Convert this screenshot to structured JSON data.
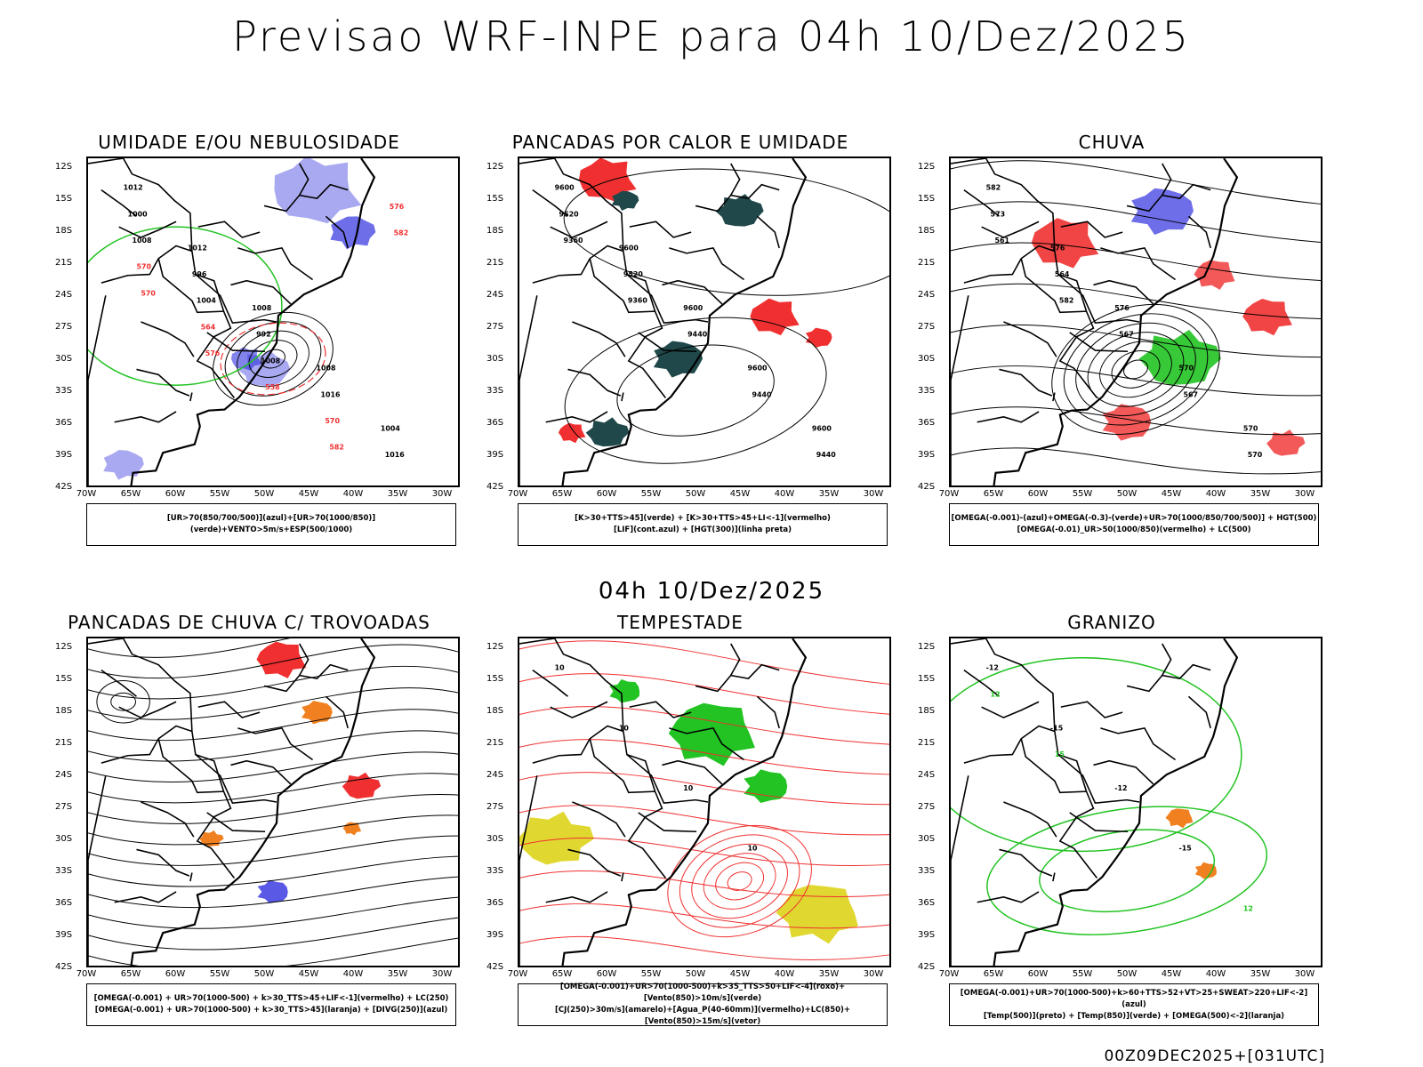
{
  "title": "Previsao WRF-INPE  para 04h 10/Dez/2025",
  "mid_title": "04h 10/Dez/2025",
  "footer": "00Z09DEC2025+[031UTC]",
  "lat_ticks": [
    "12S",
    "15S",
    "18S",
    "21S",
    "24S",
    "27S",
    "30S",
    "33S",
    "36S",
    "39S",
    "42S"
  ],
  "lon_ticks": [
    "70W",
    "65W",
    "60W",
    "55W",
    "50W",
    "45W",
    "40W",
    "35W",
    "30W"
  ],
  "colors": {
    "blue": "#3030e0",
    "green": "#22c322",
    "red": "#f03030",
    "orange": "#f08020",
    "yellow": "#e0d830",
    "teal": "#20484a",
    "lavender": "#a0a0f0",
    "purple": "#8020c0"
  },
  "panels": [
    {
      "title": "UMIDADE E/OU NEBULOSIDADE",
      "legend": [
        "[UR>70(850/700/500)](azul)+[UR>70(1000/850)](verde)+VENTO>5m/s+ESP(500/1000)"
      ],
      "labels": [
        "1012",
        "1012",
        "1008",
        "1008",
        "1004",
        "1000",
        "996",
        "992",
        "1016",
        "1016",
        "1008",
        "1004",
        "1008",
        "570",
        "576",
        "570",
        "564",
        "558",
        "582",
        "582",
        "570",
        "576"
      ]
    },
    {
      "title": "PANCADAS POR CALOR E UMIDADE",
      "legend": [
        "[K>30+TTS>45](verde) + [K>30+TTS>45+LI<-1](vermelho)",
        "[LIF](cont.azul) + [HGT(300)](linha preta)"
      ],
      "labels": [
        "9600",
        "9600",
        "9600",
        "9600",
        "9600",
        "9520",
        "9520",
        "9440",
        "9440",
        "9440",
        "9360",
        "9360"
      ]
    },
    {
      "title": "CHUVA",
      "legend": [
        "[OMEGA(-0.001)-(azul)+OMEGA(-0.3)-(verde)+UR>70(1000/850/700/500)] + HGT(500)",
        "[OMEGA(-0.01)_UR>50(1000/850)(vermelho) + LC(500)"
      ],
      "labels": [
        "582",
        "576",
        "576",
        "570",
        "570",
        "573",
        "564",
        "567",
        "567",
        "570",
        "561",
        "582"
      ]
    },
    {
      "title": "PANCADAS DE CHUVA C/ TROVOADAS",
      "legend": [
        "[OMEGA(-0.001) + UR>70(1000-500) + k>30_TTS>45+LIF<-1](vermelho) + LC(250)",
        "[OMEGA(-0.001) + UR>70(1000-500) + k>30_TTS>45](laranja) + [DIVG(250)](azul)"
      ],
      "labels": []
    },
    {
      "title": "TEMPESTADE",
      "legend": [
        "[OMEGA(-0.001)+UR>70(1000-500)+k>35_TTS>50+LIF<-4](roxo)+[Vento(850)>10m/s](verde)",
        "[CJ(250)>30m/s](amarelo)+[Agua_P(40-60mm)](vermelho)+LC(850)+[Vento(850)>15m/s](vetor)"
      ],
      "labels": [
        "10",
        "10",
        "10",
        "10"
      ]
    },
    {
      "title": "GRANIZO",
      "legend": [
        "[OMEGA(-0.001)+UR>70(1000-500)+k>60+TTS>52+VT>25+SWEAT>220+LIF<-2](azul)",
        "[Temp(500)](preto) + [Temp(850)](verde) + [OMEGA(500)<-2](laranja)"
      ],
      "labels": [
        "-12",
        "-15",
        "-12",
        "-15",
        "12",
        "12",
        "15"
      ]
    }
  ]
}
